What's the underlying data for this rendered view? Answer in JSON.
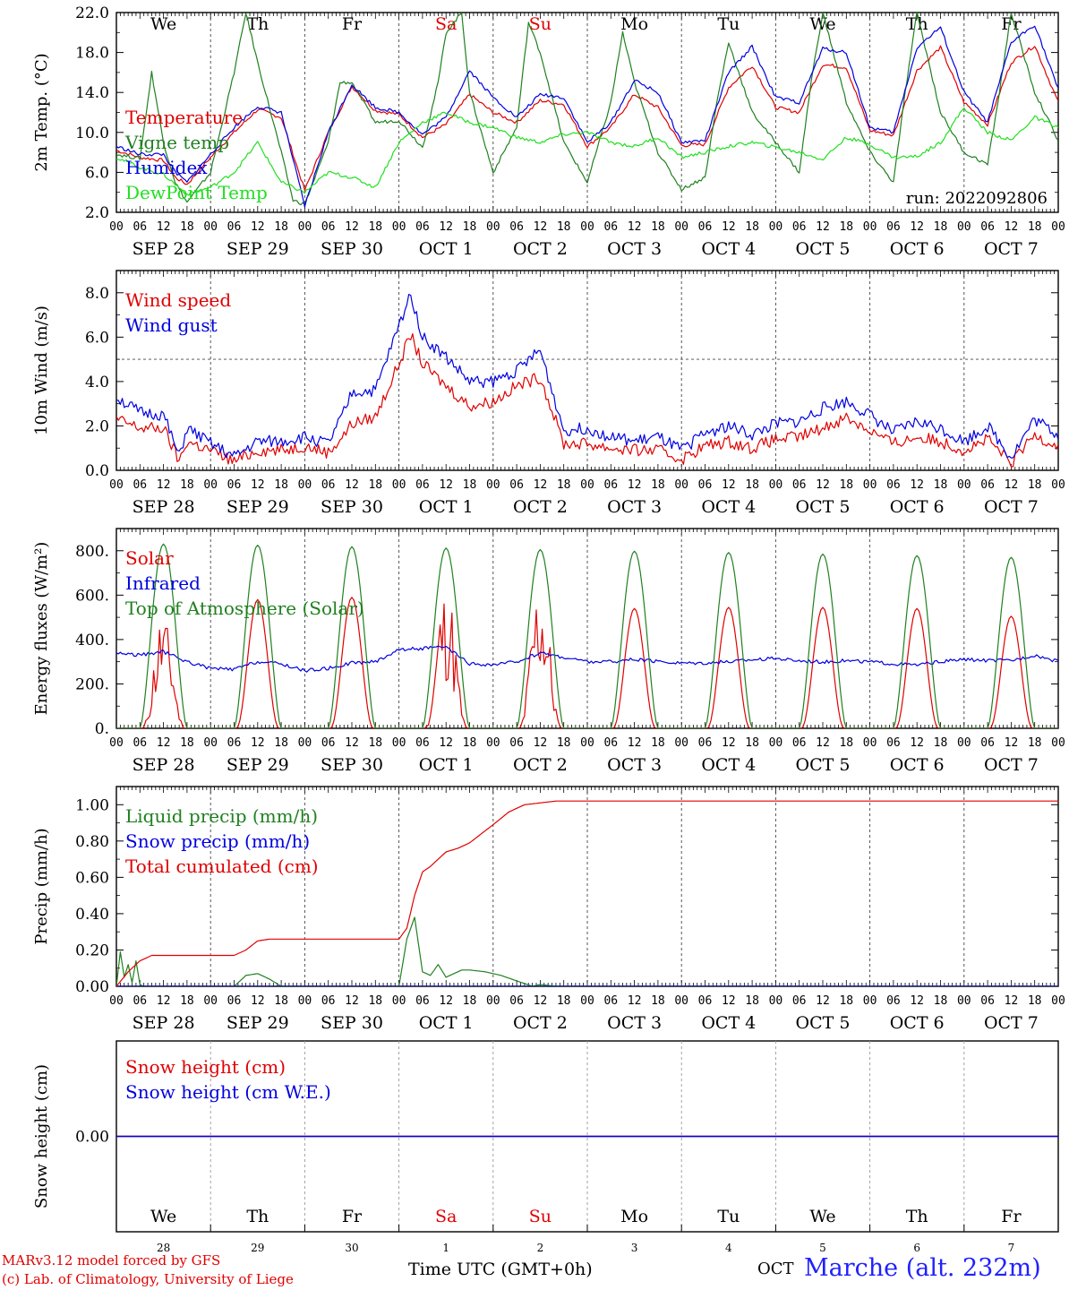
{
  "run_label": "run: 2022092806",
  "hour_ticks": [
    "00",
    "06",
    "12",
    "18"
  ],
  "final_hour_tick": "00",
  "day_labels": [
    "SEP 28",
    "SEP 29",
    "SEP 30",
    "OCT  1",
    "OCT  2",
    "OCT  3",
    "OCT  4",
    "OCT  5",
    "OCT  6",
    "OCT  7"
  ],
  "weekdays": [
    "We",
    "Th",
    "Fr",
    "Sa",
    "Su",
    "Mo",
    "Tu",
    "We",
    "Th",
    "Fr"
  ],
  "weekend_flags": [
    false,
    false,
    false,
    true,
    true,
    false,
    false,
    false,
    false,
    false
  ],
  "weekday_color": "#000000",
  "weekend_color": "#e00000",
  "day_numbers": [
    "28",
    "29",
    "30",
    "1",
    "2",
    "3",
    "4",
    "5",
    "6",
    "7"
  ],
  "footer": {
    "model": "MARv3.12 model forced by GFS",
    "lab": "(c) Lab. of Climatology, University of Liege",
    "axis_title": "Time UTC (GMT+0h)",
    "month": "OCT",
    "station": "Marche (alt. 232m)"
  },
  "chart_data": [
    {
      "type": "line",
      "ylabel": "2m Temp. (°C)",
      "ylim": [
        2,
        22
      ],
      "yticks": [
        "2.0",
        "6.0",
        "10.0",
        "14.0",
        "18.0",
        "22.0"
      ],
      "ytick_values": [
        2,
        6,
        10,
        14,
        18,
        22
      ],
      "x_unit": "hours from SEP 28 00 UTC",
      "xlim": [
        0,
        240
      ],
      "series": [
        {
          "name": "Temperature",
          "color": "#e00000",
          "x": [
            0,
            6,
            12,
            15,
            18,
            24,
            30,
            36,
            42,
            48,
            54,
            60,
            66,
            72,
            78,
            84,
            90,
            96,
            102,
            108,
            114,
            120,
            126,
            132,
            138,
            144,
            150,
            156,
            162,
            168,
            174,
            180,
            186,
            192,
            198,
            204,
            210,
            216,
            222,
            228,
            234,
            240
          ],
          "y": [
            8.2,
            7.5,
            7.2,
            5.5,
            4.8,
            7.5,
            10,
            12.3,
            11.5,
            4.2,
            10,
            14.6,
            12.2,
            11.8,
            9.5,
            10.8,
            13.8,
            12,
            11,
            13.2,
            12.8,
            8.6,
            10.5,
            13.8,
            12.5,
            8.7,
            8.8,
            14.5,
            16.7,
            12.5,
            12,
            16.8,
            16.5,
            10.2,
            9.7,
            16.2,
            18.5,
            13,
            10.8,
            17,
            18.7,
            13
          ]
        },
        {
          "name": "Vigne temp",
          "color": "#208020",
          "x": [
            0,
            6,
            9,
            12,
            15,
            18,
            24,
            30,
            33,
            36,
            42,
            45,
            48,
            54,
            57,
            60,
            66,
            72,
            78,
            82,
            84,
            88,
            90,
            96,
            102,
            105,
            108,
            114,
            120,
            126,
            129,
            132,
            138,
            144,
            150,
            153,
            156,
            162,
            168,
            174,
            177,
            180,
            186,
            192,
            198,
            201,
            204,
            210,
            216,
            222,
            225,
            228,
            234,
            240
          ],
          "y": [
            7.8,
            7.4,
            16,
            9,
            5,
            3,
            6,
            16,
            22,
            17,
            8,
            3.2,
            2.8,
            9,
            15,
            15,
            11,
            11.2,
            8.5,
            15,
            20,
            22,
            14,
            6,
            10.5,
            21,
            18,
            9,
            5,
            13,
            20,
            15,
            8,
            4.3,
            5.5,
            13,
            19,
            12,
            9,
            6,
            15,
            22,
            13,
            8,
            5,
            14,
            22,
            12,
            8,
            6.8,
            14,
            22,
            14,
            9.2
          ]
        },
        {
          "name": "Humidex",
          "color": "#0000e0",
          "x": [
            0,
            6,
            12,
            15,
            18,
            24,
            30,
            36,
            42,
            48,
            54,
            60,
            66,
            72,
            78,
            84,
            90,
            96,
            102,
            108,
            114,
            120,
            126,
            132,
            138,
            144,
            150,
            156,
            162,
            168,
            174,
            180,
            186,
            192,
            198,
            204,
            210,
            216,
            222,
            228,
            234,
            240
          ],
          "y": [
            8.6,
            7.8,
            7.8,
            6,
            5,
            7.8,
            10.5,
            12.6,
            12,
            2.6,
            10,
            14.8,
            12.5,
            12,
            9.8,
            11.5,
            16.2,
            13.5,
            11.5,
            13.8,
            13.5,
            9,
            11,
            15.2,
            14,
            9,
            9.2,
            16,
            18.6,
            13.5,
            13,
            18.4,
            18,
            10.5,
            10,
            18.5,
            20.5,
            14,
            11,
            19,
            20.8,
            14.3
          ]
        },
        {
          "name": "DewPoint Temp",
          "color": "#20e020",
          "x": [
            0,
            6,
            12,
            18,
            24,
            30,
            36,
            42,
            48,
            54,
            60,
            66,
            72,
            78,
            84,
            90,
            96,
            102,
            108,
            114,
            120,
            126,
            132,
            138,
            144,
            150,
            156,
            162,
            168,
            174,
            180,
            186,
            192,
            198,
            204,
            210,
            216,
            222,
            228,
            234,
            240
          ],
          "y": [
            7.5,
            6.5,
            5.8,
            3.8,
            4.5,
            6,
            9,
            5,
            4,
            6,
            5.5,
            4.5,
            9,
            11,
            12,
            11,
            10.5,
            9.5,
            9,
            9.8,
            10,
            9,
            8.6,
            9.5,
            7.5,
            8,
            8.6,
            9,
            8.5,
            8,
            7.3,
            9.5,
            8.8,
            7.5,
            7.6,
            9,
            12.5,
            10,
            9.2,
            11.5,
            10.5
          ]
        }
      ]
    },
    {
      "type": "line",
      "ylabel": "10m Wind (m/s)",
      "ylim": [
        0,
        9
      ],
      "yticks": [
        "0.0",
        "2.0",
        "4.0",
        "6.0",
        "8.0"
      ],
      "ytick_values": [
        0,
        2,
        4,
        6,
        8
      ],
      "reference_line": 5,
      "x_unit": "hours from SEP 28 00 UTC",
      "xlim": [
        0,
        240
      ],
      "series": [
        {
          "name": "Wind speed",
          "color": "#e00000",
          "x": [
            0,
            6,
            12,
            16,
            18,
            24,
            30,
            36,
            42,
            48,
            54,
            58,
            60,
            66,
            72,
            75,
            78,
            84,
            90,
            96,
            102,
            108,
            114,
            120,
            126,
            132,
            138,
            144,
            150,
            156,
            162,
            168,
            174,
            180,
            186,
            192,
            198,
            204,
            210,
            216,
            222,
            228,
            234,
            240
          ],
          "y": [
            2.3,
            1.9,
            1.9,
            0.4,
            1.3,
            0.9,
            0.4,
            0.9,
            0.9,
            1.1,
            0.8,
            1.6,
            2.1,
            2.4,
            4.8,
            6.1,
            4.8,
            3.8,
            2.9,
            3.1,
            3.8,
            4.2,
            1.2,
            1.2,
            1.0,
            0.9,
            0.9,
            0.5,
            1.1,
            1.3,
            1.0,
            1.4,
            1.5,
            1.9,
            2.4,
            1.8,
            1.2,
            1.5,
            1.3,
            0.9,
            1.4,
            0.3,
            1.6,
            1.1
          ]
        },
        {
          "name": "Wind gust",
          "color": "#0000e0",
          "x": [
            0,
            6,
            12,
            16,
            18,
            24,
            30,
            36,
            42,
            48,
            54,
            58,
            60,
            66,
            72,
            75,
            78,
            84,
            90,
            96,
            102,
            108,
            114,
            120,
            126,
            132,
            138,
            144,
            150,
            156,
            162,
            168,
            174,
            180,
            186,
            192,
            198,
            204,
            210,
            216,
            222,
            228,
            234,
            240
          ],
          "y": [
            3.3,
            2.6,
            2.5,
            0.6,
            1.9,
            1.2,
            0.6,
            1.3,
            1.3,
            1.5,
            1.2,
            2.6,
            3.5,
            3.6,
            6.5,
            8.0,
            6.0,
            5.1,
            4.0,
            4.0,
            4.5,
            5.4,
            1.8,
            1.9,
            1.5,
            1.3,
            1.5,
            0.9,
            1.7,
            2.0,
            1.6,
            2.1,
            2.2,
            2.8,
            3.1,
            2.5,
            1.7,
            2.2,
            1.9,
            1.3,
            2.0,
            0.6,
            2.3,
            1.6
          ]
        }
      ]
    },
    {
      "type": "line",
      "ylabel": "Energy fluxes (W/m²)",
      "ylim": [
        0,
        900
      ],
      "yticks": [
        "0.",
        "200.",
        "400.",
        "600.",
        "800."
      ],
      "ytick_values": [
        0,
        200,
        400,
        600,
        800
      ],
      "x_unit": "hours from SEP 28 00 UTC",
      "xlim": [
        0,
        240
      ],
      "series": [
        {
          "name": "Solar",
          "color": "#e00000",
          "daily_peak_hour": 12,
          "daily_peaks": [
            450,
            580,
            590,
            560,
            570,
            540,
            545,
            545,
            540,
            505
          ]
        },
        {
          "name": "Infrared",
          "color": "#0000e0",
          "x": [
            0,
            6,
            12,
            18,
            24,
            30,
            36,
            42,
            48,
            54,
            60,
            66,
            72,
            78,
            84,
            90,
            96,
            102,
            108,
            114,
            120,
            126,
            132,
            138,
            144,
            150,
            156,
            162,
            168,
            174,
            180,
            186,
            192,
            198,
            204,
            210,
            216,
            222,
            228,
            234,
            240
          ],
          "y": [
            340,
            330,
            345,
            300,
            270,
            265,
            300,
            290,
            260,
            270,
            295,
            300,
            355,
            360,
            365,
            290,
            285,
            300,
            340,
            320,
            300,
            300,
            310,
            300,
            295,
            295,
            300,
            310,
            315,
            305,
            300,
            305,
            300,
            290,
            285,
            300,
            310,
            305,
            305,
            330,
            300
          ]
        },
        {
          "name": "Top of Atmosphere (Solar)",
          "color": "#208020",
          "daily_peak_hour": 12,
          "daily_peaks": [
            830,
            825,
            818,
            812,
            805,
            798,
            792,
            785,
            778,
            770
          ]
        }
      ]
    },
    {
      "type": "line",
      "ylabel": "Precip (mm/h)",
      "ylim": [
        0,
        1.1
      ],
      "yticks": [
        "0.00",
        "0.20",
        "0.40",
        "0.60",
        "0.80",
        "1.00"
      ],
      "ytick_values": [
        0,
        0.2,
        0.4,
        0.6,
        0.8,
        1.0
      ],
      "x_unit": "hours from SEP 28 00 UTC",
      "xlim": [
        0,
        240
      ],
      "series": [
        {
          "name": "Liquid precip (mm/h)",
          "color": "#208020",
          "x": [
            0,
            1,
            2,
            3,
            4,
            5,
            6,
            7,
            8,
            10,
            12,
            30,
            33,
            36,
            39,
            42,
            72,
            74,
            76,
            78,
            80,
            82,
            84,
            86,
            88,
            90,
            94,
            98,
            102,
            106,
            108,
            112,
            240
          ],
          "y": [
            0,
            0.19,
            0.05,
            0.12,
            0.02,
            0.14,
            0.01,
            0,
            0,
            0,
            0,
            0,
            0.06,
            0.07,
            0.04,
            0,
            0,
            0.26,
            0.38,
            0.08,
            0.06,
            0.12,
            0.05,
            0.07,
            0.09,
            0.09,
            0.08,
            0.06,
            0.03,
            0,
            0.01,
            0,
            0
          ]
        },
        {
          "name": "Snow precip (mm/h)",
          "color": "#0000e0",
          "x": [
            0,
            240
          ],
          "y": [
            0,
            0
          ]
        },
        {
          "name": "Total cumulated (cm)",
          "color": "#e00000",
          "x": [
            0,
            3,
            6,
            9,
            12,
            30,
            33,
            36,
            39,
            42,
            72,
            74,
            76,
            78,
            80,
            84,
            87,
            90,
            93,
            96,
            100,
            104,
            108,
            112,
            120,
            240
          ],
          "y": [
            0,
            0.08,
            0.14,
            0.17,
            0.17,
            0.17,
            0.2,
            0.25,
            0.26,
            0.26,
            0.26,
            0.32,
            0.5,
            0.63,
            0.66,
            0.74,
            0.76,
            0.79,
            0.84,
            0.89,
            0.96,
            1.0,
            1.01,
            1.02,
            1.02,
            1.02
          ]
        }
      ]
    },
    {
      "type": "line",
      "ylabel": "Snow height (cm)",
      "ylim": [
        -1,
        1
      ],
      "yticks": [
        "0.00"
      ],
      "ytick_values": [
        0
      ],
      "x_unit": "hours from SEP 28 00 UTC",
      "xlim": [
        0,
        240
      ],
      "series": [
        {
          "name": "Snow height (cm)",
          "color": "#e00000",
          "x": [
            0,
            240
          ],
          "y": [
            0,
            0
          ]
        },
        {
          "name": "Snow height (cm W.E.)",
          "color": "#0000e0",
          "x": [
            0,
            240
          ],
          "y": [
            0,
            0
          ]
        }
      ]
    }
  ]
}
